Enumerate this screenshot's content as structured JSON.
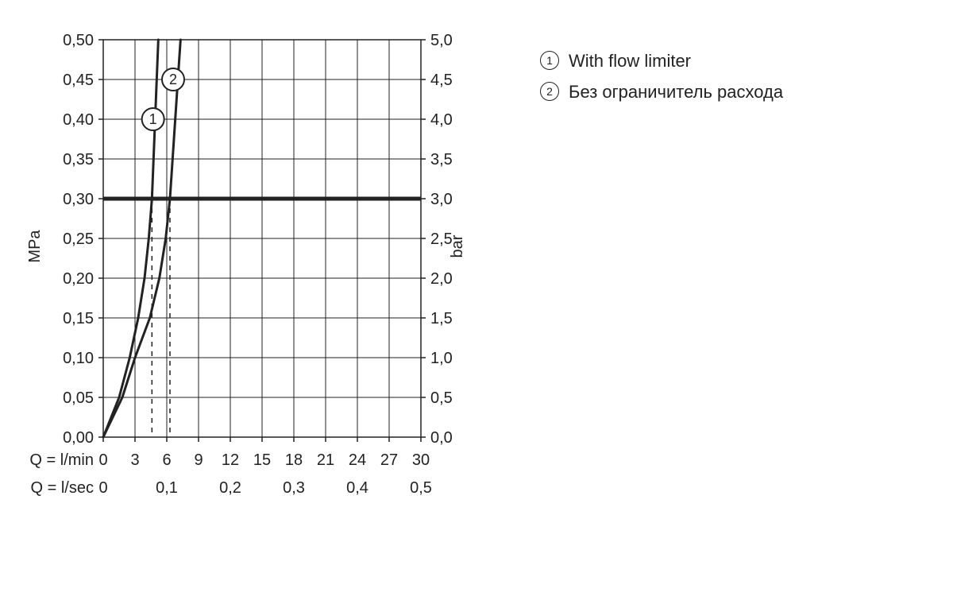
{
  "chart": {
    "type": "line",
    "background": "#ffffff",
    "grid_color": "#222222",
    "grid_width": 1,
    "axis_color": "#222222",
    "ref_line_width": 5,
    "curve_width": 3,
    "dashed_dash": "6,6",
    "label_fontsize": 20,
    "tick_fontsize": 20,
    "left_axis": {
      "label": "MPa",
      "min": 0.0,
      "max": 0.5,
      "ticks": [
        "0,00",
        "0,05",
        "0,10",
        "0,15",
        "0,20",
        "0,25",
        "0,30",
        "0,35",
        "0,40",
        "0,45",
        "0,50"
      ]
    },
    "right_axis": {
      "label": "bar",
      "min": 0.0,
      "max": 5.0,
      "ticks": [
        "0,0",
        "0,5",
        "1,0",
        "1,5",
        "2,0",
        "2,5",
        "3,0",
        "3,5",
        "4,0",
        "4,5",
        "5,0"
      ]
    },
    "x1_axis": {
      "label": "Q = l/min",
      "min": 0,
      "max": 30,
      "ticks": [
        "0",
        "3",
        "6",
        "9",
        "12",
        "15",
        "18",
        "21",
        "24",
        "27",
        "30"
      ]
    },
    "x2_axis": {
      "label": "Q = l/sec",
      "min": 0,
      "max": 0.5,
      "ticks": [
        "0",
        "0,1",
        "0,2",
        "0,3",
        "0,4",
        "0,5"
      ]
    },
    "reference_y": 0.3,
    "curve1": {
      "marker_label": "1",
      "marker_x": 4.7,
      "marker_y": 0.4,
      "points_x": [
        0.0,
        1.5,
        2.5,
        3.3,
        3.9,
        4.3,
        4.6,
        4.9,
        5.2
      ],
      "points_y": [
        0.0,
        0.05,
        0.1,
        0.15,
        0.2,
        0.25,
        0.3,
        0.4,
        0.5
      ]
    },
    "curve2": {
      "marker_label": "2",
      "marker_x": 6.6,
      "marker_y": 0.45,
      "points_x": [
        0.0,
        1.8,
        3.0,
        4.4,
        5.3,
        5.9,
        6.3,
        6.8,
        7.3
      ],
      "points_y": [
        0.0,
        0.05,
        0.1,
        0.15,
        0.2,
        0.25,
        0.3,
        0.4,
        0.5
      ]
    },
    "dashed_x": [
      4.6,
      6.3
    ]
  },
  "legend": {
    "item1": {
      "num": "1",
      "text": "With flow limiter"
    },
    "item2": {
      "num": "2",
      "text": "Без ограничитель расхода"
    }
  }
}
